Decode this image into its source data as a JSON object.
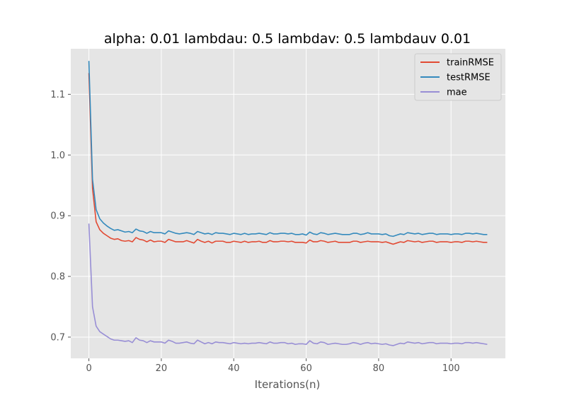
{
  "chart_data": {
    "type": "line",
    "title": "alpha: 0.01  lambdau: 0.5 lambdav: 0.5 lambdauv 0.01",
    "xlabel": "Iterations(n)",
    "ylabel": "",
    "xlim": [
      -5,
      115
    ],
    "ylim": [
      0.665,
      1.175
    ],
    "xticks": [
      0,
      20,
      40,
      60,
      80,
      100
    ],
    "xtick_labels": [
      "0",
      "20",
      "40",
      "60",
      "80",
      "100"
    ],
    "yticks": [
      0.7,
      0.8,
      0.9,
      1.0,
      1.1
    ],
    "ytick_labels": [
      "0.7",
      "0.8",
      "0.9",
      "1.0",
      "1.1"
    ],
    "grid": true,
    "legend_position": "top-right",
    "x_start": 0,
    "x_step": 1,
    "series": [
      {
        "name": "trainRMSE",
        "color": "#E24A33",
        "values": [
          1.135,
          0.945,
          0.89,
          0.877,
          0.871,
          0.867,
          0.863,
          0.861,
          0.862,
          0.859,
          0.858,
          0.859,
          0.857,
          0.864,
          0.861,
          0.86,
          0.857,
          0.86,
          0.857,
          0.858,
          0.858,
          0.856,
          0.861,
          0.859,
          0.857,
          0.857,
          0.857,
          0.859,
          0.857,
          0.855,
          0.861,
          0.858,
          0.856,
          0.858,
          0.855,
          0.858,
          0.858,
          0.858,
          0.856,
          0.856,
          0.858,
          0.857,
          0.856,
          0.858,
          0.856,
          0.857,
          0.857,
          0.858,
          0.856,
          0.856,
          0.859,
          0.857,
          0.857,
          0.858,
          0.858,
          0.857,
          0.858,
          0.856,
          0.856,
          0.856,
          0.855,
          0.86,
          0.857,
          0.857,
          0.859,
          0.858,
          0.856,
          0.857,
          0.858,
          0.856,
          0.856,
          0.856,
          0.856,
          0.858,
          0.858,
          0.856,
          0.857,
          0.858,
          0.857,
          0.857,
          0.857,
          0.856,
          0.857,
          0.855,
          0.853,
          0.855,
          0.857,
          0.856,
          0.859,
          0.858,
          0.857,
          0.858,
          0.856,
          0.857,
          0.858,
          0.858,
          0.856,
          0.857,
          0.857,
          0.857,
          0.856,
          0.857,
          0.857,
          0.856,
          0.858,
          0.858,
          0.857,
          0.858,
          0.857,
          0.856,
          0.856
        ]
      },
      {
        "name": "testRMSE",
        "color": "#348ABD",
        "values": [
          1.155,
          0.96,
          0.91,
          0.895,
          0.888,
          0.883,
          0.879,
          0.876,
          0.877,
          0.875,
          0.873,
          0.874,
          0.872,
          0.878,
          0.875,
          0.874,
          0.871,
          0.874,
          0.872,
          0.872,
          0.872,
          0.87,
          0.875,
          0.873,
          0.871,
          0.87,
          0.871,
          0.872,
          0.871,
          0.869,
          0.874,
          0.872,
          0.87,
          0.871,
          0.869,
          0.872,
          0.871,
          0.871,
          0.87,
          0.869,
          0.871,
          0.87,
          0.869,
          0.871,
          0.869,
          0.87,
          0.87,
          0.871,
          0.87,
          0.869,
          0.872,
          0.87,
          0.87,
          0.871,
          0.871,
          0.87,
          0.871,
          0.869,
          0.869,
          0.87,
          0.868,
          0.873,
          0.87,
          0.869,
          0.872,
          0.871,
          0.869,
          0.87,
          0.871,
          0.87,
          0.869,
          0.869,
          0.869,
          0.871,
          0.871,
          0.869,
          0.87,
          0.872,
          0.87,
          0.87,
          0.87,
          0.869,
          0.87,
          0.867,
          0.866,
          0.868,
          0.87,
          0.869,
          0.872,
          0.871,
          0.87,
          0.871,
          0.869,
          0.87,
          0.871,
          0.871,
          0.869,
          0.87,
          0.87,
          0.87,
          0.869,
          0.87,
          0.87,
          0.869,
          0.871,
          0.871,
          0.87,
          0.871,
          0.87,
          0.869,
          0.869
        ]
      },
      {
        "name": "mae",
        "color": "#988ED5",
        "values": [
          0.887,
          0.75,
          0.718,
          0.709,
          0.705,
          0.701,
          0.697,
          0.695,
          0.695,
          0.694,
          0.693,
          0.694,
          0.691,
          0.699,
          0.695,
          0.694,
          0.691,
          0.694,
          0.692,
          0.692,
          0.692,
          0.69,
          0.695,
          0.693,
          0.69,
          0.69,
          0.691,
          0.692,
          0.69,
          0.689,
          0.695,
          0.692,
          0.689,
          0.691,
          0.689,
          0.692,
          0.691,
          0.691,
          0.69,
          0.689,
          0.691,
          0.69,
          0.689,
          0.69,
          0.689,
          0.69,
          0.69,
          0.691,
          0.69,
          0.689,
          0.692,
          0.69,
          0.69,
          0.691,
          0.691,
          0.689,
          0.69,
          0.688,
          0.689,
          0.689,
          0.688,
          0.694,
          0.69,
          0.689,
          0.692,
          0.691,
          0.688,
          0.689,
          0.69,
          0.689,
          0.688,
          0.688,
          0.689,
          0.691,
          0.69,
          0.688,
          0.69,
          0.691,
          0.689,
          0.69,
          0.689,
          0.688,
          0.689,
          0.687,
          0.686,
          0.688,
          0.69,
          0.689,
          0.692,
          0.691,
          0.69,
          0.691,
          0.689,
          0.69,
          0.691,
          0.691,
          0.689,
          0.69,
          0.69,
          0.69,
          0.689,
          0.69,
          0.69,
          0.689,
          0.691,
          0.691,
          0.69,
          0.691,
          0.69,
          0.689,
          0.688
        ]
      }
    ]
  }
}
